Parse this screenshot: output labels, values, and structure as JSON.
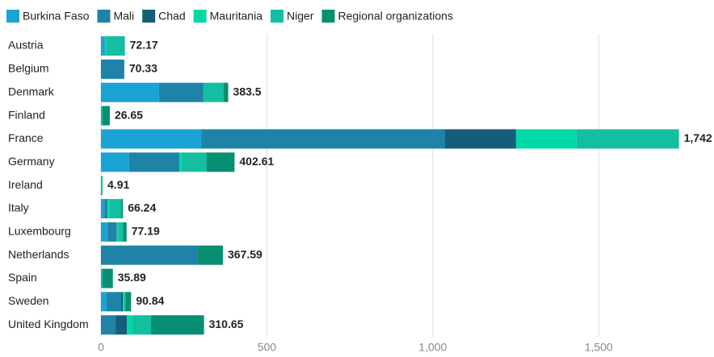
{
  "chart_data": {
    "type": "bar",
    "orientation": "horizontal",
    "stacked": true,
    "categories": [
      "Austria",
      "Belgium",
      "Denmark",
      "Finland",
      "France",
      "Germany",
      "Ireland",
      "Italy",
      "Luxembourg",
      "Netherlands",
      "Spain",
      "Sweden",
      "United Kingdom"
    ],
    "series": [
      {
        "name": "Burkina Faso",
        "color": "#1ba3d6",
        "values": [
          12,
          0,
          175,
          0,
          302,
          85,
          0,
          10,
          20,
          0,
          0,
          17,
          0
        ]
      },
      {
        "name": "Mali",
        "color": "#1f83a8",
        "values": [
          0,
          70.33,
          134,
          0,
          735,
          151,
          0,
          10,
          28,
          292,
          0,
          44,
          44
        ]
      },
      {
        "name": "Chad",
        "color": "#155e7a",
        "values": [
          0,
          0,
          0,
          0,
          214,
          0,
          0,
          0,
          0,
          0,
          0,
          5,
          34
        ]
      },
      {
        "name": "Mauritania",
        "color": "#00d9a6",
        "values": [
          4,
          0,
          0,
          0,
          182,
          7,
          0,
          5,
          5,
          0,
          0,
          3,
          17
        ]
      },
      {
        "name": "Niger",
        "color": "#13bfa0",
        "values": [
          56.17,
          0,
          61,
          5,
          309,
          75,
          4.91,
          36,
          14,
          0,
          5,
          5,
          56
        ]
      },
      {
        "name": "Regional organizations",
        "color": "#068f72",
        "values": [
          0,
          0,
          13.5,
          21.65,
          0,
          84.61,
          0,
          5.24,
          10.19,
          75.59,
          30.89,
          16.84,
          159.65
        ]
      }
    ],
    "value_labels": [
      "72.17",
      "70.33",
      "383.5",
      "26.65",
      "1,742",
      "402.61",
      "4.91",
      "66.24",
      "77.19",
      "367.59",
      "35.89",
      "90.84",
      "310.65"
    ],
    "xlim": [
      0,
      1850
    ],
    "xticks": [
      0,
      500,
      {
        "value": 1000,
        "label": "1,000"
      },
      {
        "value": 1500,
        "label": "1,500"
      }
    ],
    "grid": true,
    "legend": "top"
  }
}
